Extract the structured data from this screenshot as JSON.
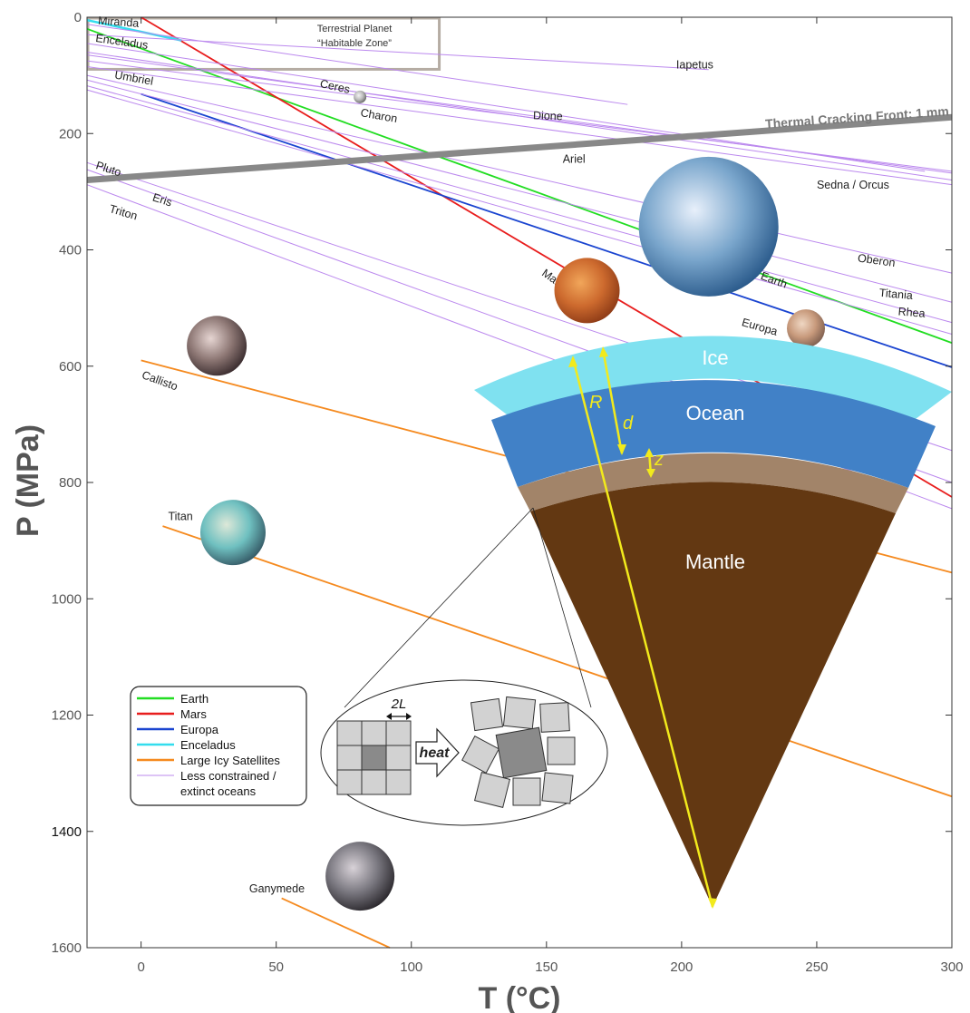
{
  "chart_data": {
    "type": "line",
    "xlabel": "T (°C)",
    "ylabel": "P (MPa)",
    "xlim": [
      -20,
      300
    ],
    "ylim": [
      1600,
      0
    ],
    "xticks": [
      0,
      50,
      100,
      150,
      200,
      250,
      300
    ],
    "yticks": [
      0,
      200,
      400,
      600,
      800,
      1000,
      1200,
      1400,
      1600
    ],
    "grid": false,
    "legend_position": "lower-left",
    "legend": [
      {
        "label": "Earth",
        "color": "#22dd22"
      },
      {
        "label": "Mars",
        "color": "#e81d1d"
      },
      {
        "label": "Europa",
        "color": "#1a44d0"
      },
      {
        "label": "Enceladus",
        "color": "#33ddee"
      },
      {
        "label": "Large Icy Satellites",
        "color": "#f58a1f"
      },
      {
        "label": "Less constrained / extinct oceans",
        "color": "#bb88ee"
      }
    ],
    "series": [
      {
        "name": "Earth",
        "color": "#22dd22",
        "x": [
          -20,
          300
        ],
        "y": [
          20,
          560
        ]
      },
      {
        "name": "Mars",
        "color": "#e81d1d",
        "x": [
          0,
          300
        ],
        "y": [
          0,
          825
        ]
      },
      {
        "name": "Europa",
        "color": "#1a44d0",
        "x": [
          0,
          300
        ],
        "y": [
          132,
          602
        ]
      },
      {
        "name": "Enceladus",
        "color": "#33ddee",
        "x": [
          -20,
          15
        ],
        "y": [
          5,
          40
        ]
      },
      {
        "name": "Callisto",
        "color": "#f58a1f",
        "x": [
          0,
          300
        ],
        "y": [
          590,
          955
        ]
      },
      {
        "name": "Titan",
        "color": "#f58a1f",
        "x": [
          8,
          300
        ],
        "y": [
          875,
          1340
        ]
      },
      {
        "name": "Ganymede",
        "color": "#f58a1f",
        "x": [
          52,
          92
        ],
        "y": [
          1515,
          1600
        ]
      },
      {
        "name": "Miranda",
        "color": "#bb88ee",
        "x": [
          -20,
          180
        ],
        "y": [
          12,
          150
        ]
      },
      {
        "name": "Iapetus",
        "color": "#bb88ee",
        "x": [
          -20,
          210
        ],
        "y": [
          30,
          90
        ]
      },
      {
        "name": "Ceres",
        "color": "#bb88ee",
        "x": [
          -20,
          290
        ],
        "y": [
          45,
          265
        ]
      },
      {
        "name": "Charon",
        "color": "#bb88ee",
        "x": [
          -20,
          300
        ],
        "y": [
          60,
          280
        ]
      },
      {
        "name": "Dione",
        "color": "#bb88ee",
        "x": [
          -20,
          300
        ],
        "y": [
          65,
          268
        ]
      },
      {
        "name": "Ariel",
        "color": "#bb88ee",
        "x": [
          -20,
          300
        ],
        "y": [
          75,
          265
        ]
      },
      {
        "name": "Sedna / Orcus",
        "color": "#bb88ee",
        "x": [
          -20,
          300
        ],
        "y": [
          85,
          288
        ]
      },
      {
        "name": "Umbriel",
        "color": "#bb88ee",
        "x": [
          -20,
          300
        ],
        "y": [
          100,
          440
        ]
      },
      {
        "name": "Oberon",
        "color": "#bb88ee",
        "x": [
          -20,
          300
        ],
        "y": [
          108,
          490
        ]
      },
      {
        "name": "Titania",
        "color": "#bb88ee",
        "x": [
          -20,
          300
        ],
        "y": [
          118,
          525
        ]
      },
      {
        "name": "Rhea",
        "color": "#bb88ee",
        "x": [
          -20,
          300
        ],
        "y": [
          125,
          545
        ]
      },
      {
        "name": "Pluto",
        "color": "#bb88ee",
        "x": [
          -20,
          300
        ],
        "y": [
          250,
          745
        ]
      },
      {
        "name": "Eris",
        "color": "#bb88ee",
        "x": [
          -20,
          300
        ],
        "y": [
          262,
          800
        ]
      },
      {
        "name": "Triton",
        "color": "#bb88ee",
        "x": [
          -20,
          300
        ],
        "y": [
          288,
          845
        ]
      }
    ],
    "thermal_front": {
      "label": "Thermal Cracking Front: 1 mm",
      "x": [
        -20,
        300
      ],
      "y": [
        280,
        172
      ],
      "color": "#888888"
    },
    "habitable_zone": {
      "label_line1": "Terrestrial Planet",
      "label_line2": "“Habitable Zone”",
      "x": [
        -20,
        110
      ],
      "y": [
        0,
        88
      ]
    },
    "line_labels": [
      {
        "text": "Miranda",
        "x": -16,
        "y": 12,
        "rot": 4
      },
      {
        "text": "Enceladus",
        "x": -17,
        "y": 42,
        "rot": 8
      },
      {
        "text": "Umbriel",
        "x": -10,
        "y": 105,
        "rot": 10
      },
      {
        "text": "Ceres",
        "x": 66,
        "y": 120,
        "rot": 12
      },
      {
        "text": "Charon",
        "x": 81,
        "y": 170,
        "rot": 10
      },
      {
        "text": "Dione",
        "x": 145,
        "y": 175,
        "rot": 2
      },
      {
        "text": "Ariel",
        "x": 156,
        "y": 250,
        "rot": 0
      },
      {
        "text": "Sedna / Orcus",
        "x": 250,
        "y": 295,
        "rot": 0
      },
      {
        "text": "Pluto",
        "x": -17,
        "y": 260,
        "rot": 18
      },
      {
        "text": "Eris",
        "x": 4,
        "y": 315,
        "rot": 18
      },
      {
        "text": "Triton",
        "x": -12,
        "y": 335,
        "rot": 16
      },
      {
        "text": "Oberon",
        "x": 265,
        "y": 420,
        "rot": 8
      },
      {
        "text": "Titania",
        "x": 273,
        "y": 480,
        "rot": 5
      },
      {
        "text": "Rhea",
        "x": 280,
        "y": 512,
        "rot": 5
      },
      {
        "text": "Earth",
        "x": 229,
        "y": 450,
        "rot": 20
      },
      {
        "text": "Mars",
        "x": 148,
        "y": 443,
        "rot": 35
      },
      {
        "text": "Europa",
        "x": 222,
        "y": 530,
        "rot": 16
      },
      {
        "text": "Callisto",
        "x": 0,
        "y": 620,
        "rot": 20
      },
      {
        "text": "Titan",
        "x": 10,
        "y": 865,
        "rot": 0
      },
      {
        "text": "Ganymede",
        "x": 40,
        "y": 1505,
        "rot": 0
      },
      {
        "text": "Iapetus",
        "x": 198,
        "y": 88,
        "rot": 0
      }
    ],
    "thumbnails": [
      {
        "name": "Earth",
        "cx": 210,
        "cy": 360,
        "r": 77,
        "colors": [
          "#e8f0fb",
          "#7aa6cc",
          "#2b5b8c"
        ]
      },
      {
        "name": "Mars",
        "cx": 165,
        "cy": 470,
        "r": 36,
        "colors": [
          "#f1a65a",
          "#cd6a2e",
          "#8f3c17"
        ]
      },
      {
        "name": "Europa",
        "cx": 246,
        "cy": 535,
        "r": 21,
        "colors": [
          "#efd7c3",
          "#c89a7c",
          "#806050"
        ]
      },
      {
        "name": "Callisto",
        "cx": 28,
        "cy": 565,
        "r": 33,
        "colors": [
          "#e6d5d2",
          "#8d7774",
          "#3c2e30"
        ]
      },
      {
        "name": "Titan",
        "cx": 34,
        "cy": 886,
        "r": 36,
        "colors": [
          "#dde8d8",
          "#6fc0c0",
          "#365c68"
        ]
      },
      {
        "name": "Ganymede",
        "cx": 81,
        "cy": 1477,
        "r": 38,
        "colors": [
          "#d8d2d8",
          "#7a7880",
          "#2d2a2f"
        ]
      },
      {
        "name": "Ceres",
        "cx": 81,
        "cy": 137,
        "r": 7,
        "colors": [
          "#f3f3f3",
          "#b9b9b9",
          "#666666"
        ]
      }
    ],
    "inset": {
      "layers": [
        "Ice",
        "Ocean",
        "Mantle"
      ],
      "layer_colors": {
        "ice": "#7fe1f0",
        "ocean": "#4181c7",
        "crust": "#a28469",
        "mantle": "#633812"
      },
      "variables": [
        "R",
        "d",
        "z"
      ],
      "zoom_labels": {
        "spacing": "2L",
        "process": "heat"
      }
    }
  }
}
